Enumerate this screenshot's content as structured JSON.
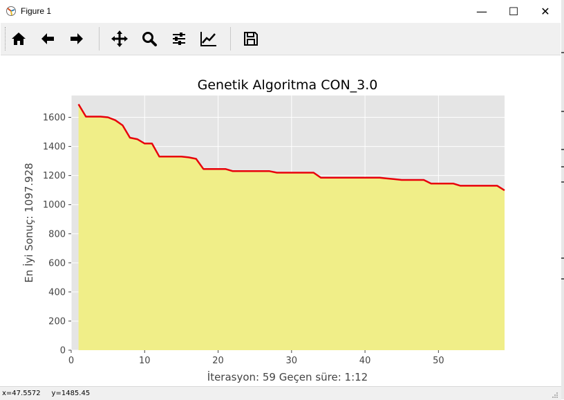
{
  "window": {
    "title": "Figure 1",
    "controls": {
      "minimize": "—",
      "maximize": "☐",
      "close": "✕"
    }
  },
  "toolbar": {
    "buttons": [
      {
        "name": "home",
        "icon": "home-icon"
      },
      {
        "name": "back",
        "icon": "arrow-left-icon"
      },
      {
        "name": "forward",
        "icon": "arrow-right-icon"
      },
      {
        "name": "pan",
        "icon": "move-icon"
      },
      {
        "name": "zoom",
        "icon": "magnifier-icon"
      },
      {
        "name": "configure-subplots",
        "icon": "sliders-icon"
      },
      {
        "name": "edit-axis",
        "icon": "line-chart-icon"
      },
      {
        "name": "save",
        "icon": "floppy-disk-icon"
      }
    ]
  },
  "status": {
    "coords": "x=47.5572     y=1485.45"
  },
  "colors": {
    "axes_bg": "#e5e5e5",
    "grid": "#ffffff",
    "line": "#e8000b",
    "fill": "#f0ee88",
    "text": "#444444"
  },
  "chart_data": {
    "type": "area",
    "title": "Genetik Algoritma CON_3.0",
    "xlabel": "İterasyon: 59 Geçen süre: 1:12",
    "ylabel": "En İyi Sonuç: 1097.928",
    "xlim": [
      0,
      59
    ],
    "ylim": [
      0,
      1750
    ],
    "xticks": [
      0,
      10,
      20,
      30,
      40,
      50
    ],
    "yticks": [
      0,
      200,
      400,
      600,
      800,
      1000,
      1200,
      1400,
      1600
    ],
    "grid": true,
    "series": [
      {
        "x": [
          1,
          2,
          3,
          4,
          5,
          6,
          7,
          8,
          9,
          10,
          11,
          12,
          13,
          14,
          15,
          16,
          17,
          18,
          19,
          20,
          21,
          22,
          23,
          24,
          25,
          26,
          27,
          28,
          29,
          30,
          31,
          32,
          33,
          34,
          35,
          36,
          37,
          38,
          39,
          40,
          41,
          42,
          43,
          44,
          45,
          46,
          47,
          48,
          49,
          50,
          51,
          52,
          53,
          54,
          55,
          56,
          57,
          58,
          59
        ],
        "y": [
          1690,
          1605,
          1605,
          1605,
          1600,
          1580,
          1545,
          1460,
          1450,
          1420,
          1420,
          1330,
          1330,
          1330,
          1330,
          1325,
          1315,
          1245,
          1245,
          1245,
          1245,
          1230,
          1230,
          1230,
          1230,
          1230,
          1230,
          1220,
          1220,
          1220,
          1220,
          1220,
          1220,
          1185,
          1185,
          1185,
          1185,
          1185,
          1185,
          1185,
          1185,
          1185,
          1180,
          1175,
          1170,
          1170,
          1170,
          1170,
          1145,
          1145,
          1145,
          1145,
          1130,
          1130,
          1130,
          1130,
          1130,
          1130,
          1097.928
        ]
      }
    ]
  }
}
